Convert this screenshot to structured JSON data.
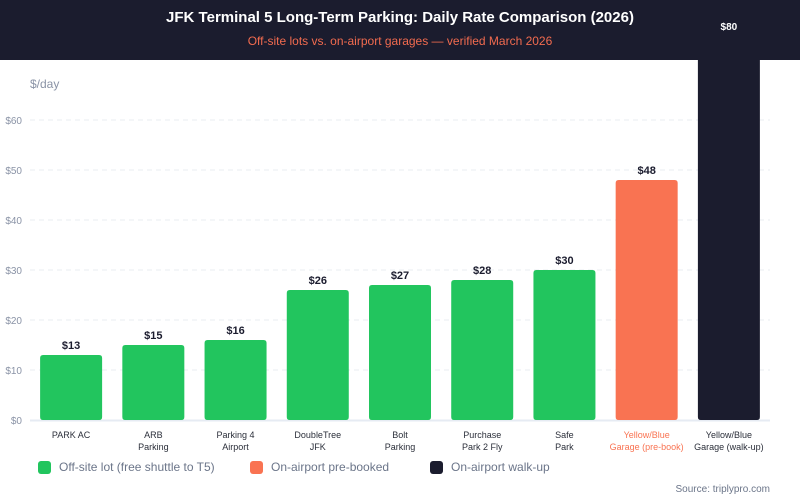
{
  "chart_data": {
    "type": "bar",
    "title": "JFK Terminal 5 Long-Term Parking: Daily Rate Comparison (2026)",
    "subtitle": "Off-site lots vs. on-airport garages — verified March 2026",
    "ylabel": "$/day",
    "xlabel": "",
    "ylim": [
      0,
      60
    ],
    "yticks": [
      0,
      10,
      20,
      30,
      40,
      50,
      60
    ],
    "ytick_labels": [
      "$0",
      "$10",
      "$20",
      "$30",
      "$40",
      "$50",
      "$60"
    ],
    "grid": true,
    "categories": [
      [
        "PARK AC"
      ],
      [
        "ARB",
        "Parking"
      ],
      [
        "Parking 4",
        "Airport"
      ],
      [
        "DoubleTree",
        "JFK"
      ],
      [
        "Bolt",
        "Parking"
      ],
      [
        "Purchase",
        "Park 2 Fly"
      ],
      [
        "Safe",
        "Park"
      ],
      [
        "Yellow/Blue",
        "Garage (pre-book)"
      ],
      [
        "Yellow/Blue",
        "Garage (walk-up)"
      ]
    ],
    "values": [
      13,
      15,
      16,
      26,
      27,
      28,
      30,
      48,
      80
    ],
    "value_labels": [
      "$13",
      "$15",
      "$16",
      "$26",
      "$27",
      "$28",
      "$30",
      "$48",
      "$80"
    ],
    "groups": [
      "offsite",
      "offsite",
      "offsite",
      "offsite",
      "offsite",
      "offsite",
      "offsite",
      "prebook",
      "walkup"
    ],
    "legend": [
      {
        "key": "offsite",
        "label": "Off-site lot (free shuttle to T5)",
        "color": "#22c55e"
      },
      {
        "key": "prebook",
        "label": "On-airport pre-booked",
        "color": "#f97352"
      },
      {
        "key": "walkup",
        "label": "On-airport walk-up",
        "color": "#1b1c2e"
      }
    ],
    "legend_position": "bottom-left",
    "source": "Source: triplypro.com"
  },
  "colors": {
    "header_bg": "#1b1c2e",
    "subtitle": "#f26b4f",
    "axis_text": "#8a93a6",
    "label_text": "#1b1c2e",
    "prebook_label_text": "#f97352",
    "grid": "#e8ecf2"
  }
}
